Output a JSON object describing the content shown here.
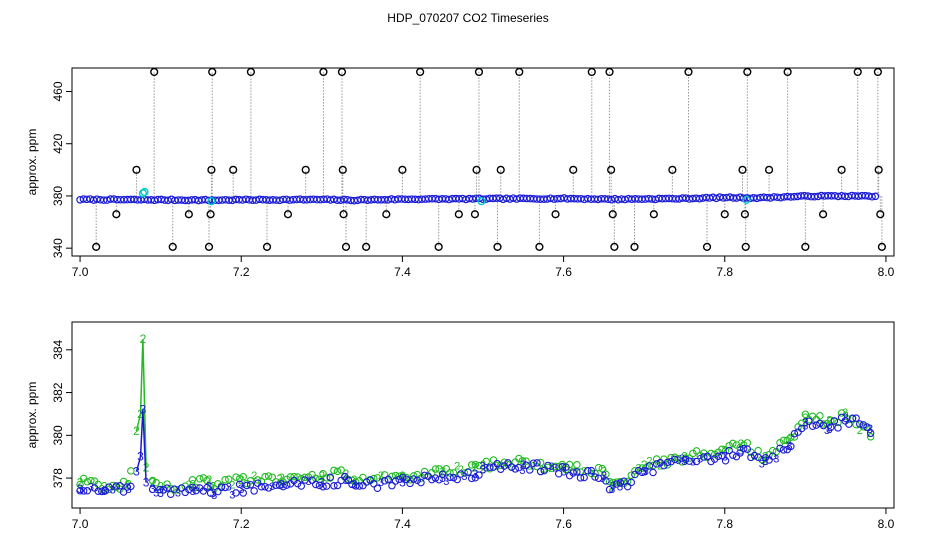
{
  "title": "HDP_070207  CO2 Timeseries",
  "chart_data": [
    {
      "type": "scatter",
      "ylabel": "approx. ppm",
      "xlim": [
        6.99,
        8.01
      ],
      "ylim": [
        334,
        478
      ],
      "xticks": [
        7.0,
        7.2,
        7.4,
        7.6,
        7.8,
        8.0
      ],
      "xtick_labels": [
        "7.0",
        "7.2",
        "7.4",
        "7.6",
        "7.8",
        "8.0"
      ],
      "yticks": [
        340,
        380,
        420,
        460
      ],
      "ytick_labels": [
        "340",
        "380",
        "420",
        "460"
      ],
      "baseline_points": [
        [
          7.0,
          377.3
        ],
        [
          7.06,
          377.1
        ],
        [
          7.1,
          377.0
        ],
        [
          7.16,
          376.8
        ],
        [
          7.2,
          377.0
        ],
        [
          7.3,
          377.2
        ],
        [
          7.34,
          376.8
        ],
        [
          7.4,
          377.5
        ],
        [
          7.5,
          377.8
        ],
        [
          7.6,
          378.0
        ],
        [
          7.66,
          377.5
        ],
        [
          7.68,
          377.6
        ],
        [
          7.75,
          378.0
        ],
        [
          7.8,
          378.8
        ],
        [
          7.84,
          378.5
        ],
        [
          7.9,
          379.8
        ],
        [
          7.95,
          380.0
        ],
        [
          7.99,
          379.8
        ]
      ],
      "spikes": [
        {
          "x": 7.02,
          "y": 341
        },
        {
          "x": 7.045,
          "y": 366
        },
        {
          "x": 7.07,
          "y": 400
        },
        {
          "x": 7.092,
          "y": 475
        },
        {
          "x": 7.115,
          "y": 341
        },
        {
          "x": 7.135,
          "y": 366
        },
        {
          "x": 7.16,
          "y": 341
        },
        {
          "x": 7.162,
          "y": 366
        },
        {
          "x": 7.163,
          "y": 400
        },
        {
          "x": 7.164,
          "y": 475
        },
        {
          "x": 7.19,
          "y": 400
        },
        {
          "x": 7.212,
          "y": 475
        },
        {
          "x": 7.232,
          "y": 341
        },
        {
          "x": 7.258,
          "y": 366
        },
        {
          "x": 7.28,
          "y": 400
        },
        {
          "x": 7.302,
          "y": 475
        },
        {
          "x": 7.325,
          "y": 475
        },
        {
          "x": 7.326,
          "y": 400
        },
        {
          "x": 7.327,
          "y": 366
        },
        {
          "x": 7.33,
          "y": 341
        },
        {
          "x": 7.355,
          "y": 341
        },
        {
          "x": 7.38,
          "y": 366
        },
        {
          "x": 7.4,
          "y": 400
        },
        {
          "x": 7.422,
          "y": 475
        },
        {
          "x": 7.445,
          "y": 341
        },
        {
          "x": 7.47,
          "y": 366
        },
        {
          "x": 7.49,
          "y": 366
        },
        {
          "x": 7.492,
          "y": 400
        },
        {
          "x": 7.495,
          "y": 475
        },
        {
          "x": 7.518,
          "y": 341
        },
        {
          "x": 7.522,
          "y": 400
        },
        {
          "x": 7.545,
          "y": 475
        },
        {
          "x": 7.57,
          "y": 341
        },
        {
          "x": 7.59,
          "y": 366
        },
        {
          "x": 7.612,
          "y": 400
        },
        {
          "x": 7.635,
          "y": 475
        },
        {
          "x": 7.657,
          "y": 475
        },
        {
          "x": 7.659,
          "y": 400
        },
        {
          "x": 7.661,
          "y": 366
        },
        {
          "x": 7.663,
          "y": 341
        },
        {
          "x": 7.688,
          "y": 341
        },
        {
          "x": 7.712,
          "y": 366
        },
        {
          "x": 7.735,
          "y": 400
        },
        {
          "x": 7.755,
          "y": 475
        },
        {
          "x": 7.778,
          "y": 341
        },
        {
          "x": 7.8,
          "y": 366
        },
        {
          "x": 7.822,
          "y": 400
        },
        {
          "x": 7.825,
          "y": 366
        },
        {
          "x": 7.826,
          "y": 341
        },
        {
          "x": 7.828,
          "y": 475
        },
        {
          "x": 7.855,
          "y": 400
        },
        {
          "x": 7.878,
          "y": 475
        },
        {
          "x": 7.9,
          "y": 341
        },
        {
          "x": 7.922,
          "y": 366
        },
        {
          "x": 7.945,
          "y": 400
        },
        {
          "x": 7.965,
          "y": 475
        },
        {
          "x": 7.99,
          "y": 475
        },
        {
          "x": 7.991,
          "y": 400
        },
        {
          "x": 7.993,
          "y": 366
        },
        {
          "x": 7.995,
          "y": 341
        }
      ],
      "highlight_points": [
        {
          "x": 7.078,
          "y": 382
        },
        {
          "x": 7.08,
          "y": 383
        },
        {
          "x": 7.163,
          "y": 376
        },
        {
          "x": 7.498,
          "y": 376
        },
        {
          "x": 7.827,
          "y": 377
        }
      ],
      "colors": {
        "baseline": "#1a1ad6",
        "spike_marker": "#000000",
        "spike_line": "#999999",
        "highlight": "#00c8c8"
      }
    },
    {
      "type": "scatter",
      "ylabel": "approx. ppm",
      "xlim": [
        6.99,
        8.01
      ],
      "ylim": [
        376.6,
        385.3
      ],
      "xticks": [
        7.0,
        7.2,
        7.4,
        7.6,
        7.8,
        8.0
      ],
      "xtick_labels": [
        "7.0",
        "7.2",
        "7.4",
        "7.6",
        "7.8",
        "8.0"
      ],
      "yticks": [
        378,
        380,
        382,
        384
      ],
      "ytick_labels": [
        "378",
        "380",
        "382",
        "384"
      ],
      "series": [
        {
          "marker": "2",
          "color": "#22bb22",
          "x": [
            7.0,
            7.03,
            7.06,
            7.07,
            7.075,
            7.078,
            7.082,
            7.09,
            7.1,
            7.14,
            7.16,
            7.165,
            7.2,
            7.25,
            7.3,
            7.33,
            7.34,
            7.4,
            7.45,
            7.49,
            7.5,
            7.55,
            7.6,
            7.65,
            7.66,
            7.67,
            7.7,
            7.75,
            7.8,
            7.82,
            7.85,
            7.88,
            7.9,
            7.93,
            7.95,
            7.98
          ],
          "y": [
            377.8,
            377.6,
            377.7,
            380.2,
            381.0,
            384.5,
            378.5,
            377.8,
            377.6,
            377.7,
            377.9,
            377.6,
            377.9,
            378.0,
            378.1,
            378.2,
            377.9,
            378.1,
            378.3,
            378.5,
            378.6,
            378.7,
            378.5,
            378.3,
            377.6,
            377.8,
            378.6,
            379.0,
            379.3,
            379.6,
            379.0,
            379.8,
            380.8,
            380.7,
            380.9,
            380.1
          ]
        },
        {
          "marker": "3",
          "color": "#1a1ad6",
          "x": [
            7.0,
            7.03,
            7.06,
            7.07,
            7.075,
            7.078,
            7.082,
            7.09,
            7.1,
            7.14,
            7.16,
            7.165,
            7.2,
            7.25,
            7.3,
            7.33,
            7.34,
            7.4,
            7.45,
            7.49,
            7.5,
            7.55,
            7.6,
            7.65,
            7.66,
            7.67,
            7.7,
            7.75,
            7.8,
            7.82,
            7.85,
            7.88,
            7.9,
            7.93,
            7.95,
            7.98
          ],
          "y": [
            377.5,
            377.4,
            377.5,
            378.3,
            379.0,
            381.2,
            377.8,
            377.5,
            377.3,
            377.4,
            377.6,
            377.3,
            377.5,
            377.7,
            377.8,
            377.9,
            377.7,
            377.8,
            378.0,
            378.2,
            378.4,
            378.6,
            378.3,
            378.1,
            377.5,
            377.6,
            378.3,
            378.8,
            379.0,
            379.3,
            378.8,
            379.5,
            380.6,
            380.3,
            380.8,
            380.3
          ]
        }
      ]
    }
  ]
}
